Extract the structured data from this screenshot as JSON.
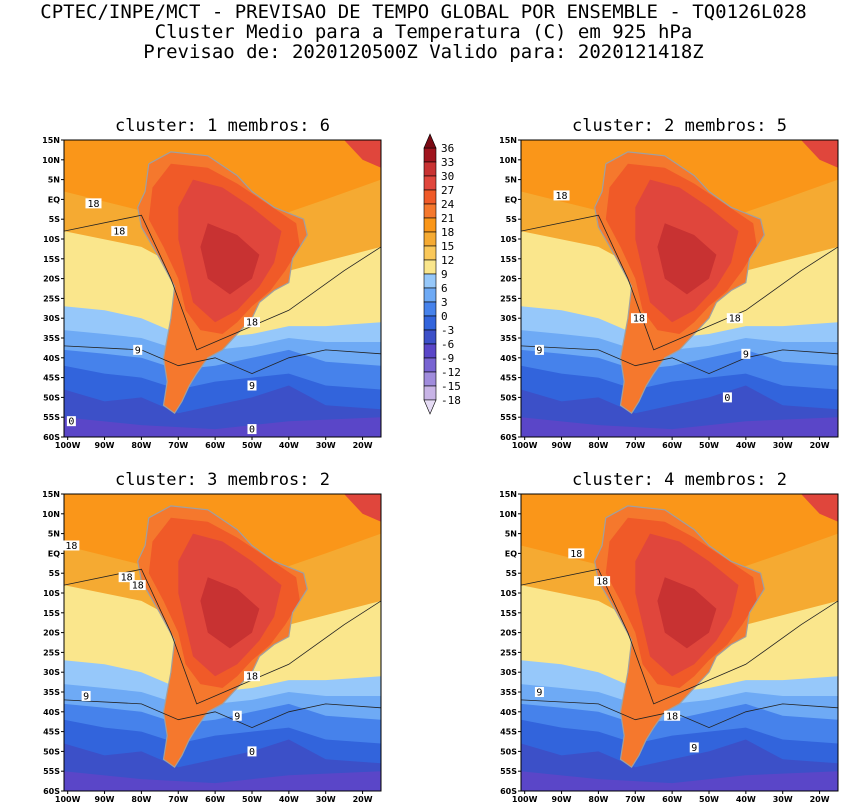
{
  "header": {
    "line1": "CPTEC/INPE/MCT - PREVISAO DE TEMPO GLOBAL POR ENSEMBLE - TQ0126L028",
    "line2": "Cluster Medio para a Temperatura (C) em 925 hPa",
    "line3": "Previsao de: 2020120500Z   Valido para: 2020121418Z"
  },
  "lat_labels": [
    "15N",
    "10N",
    "5N",
    "EQ",
    "5S",
    "10S",
    "15S",
    "20S",
    "25S",
    "30S",
    "35S",
    "40S",
    "45S",
    "50S",
    "55S",
    "60S"
  ],
  "lon_labels": [
    "100W",
    "90W",
    "80W",
    "70W",
    "60W",
    "50W",
    "40W",
    "30W",
    "20W"
  ],
  "colorbar": {
    "labels": [
      "36",
      "33",
      "30",
      "27",
      "24",
      "21",
      "18",
      "15",
      "12",
      "9",
      "6",
      "3",
      "0",
      "-3",
      "-6",
      "-9",
      "-12",
      "-15",
      "-18"
    ],
    "colors": [
      "#a0141e",
      "#c83232",
      "#e0463c",
      "#f05a28",
      "#f5782d",
      "#fa9619",
      "#f5aa32",
      "#fac85a",
      "#fae68c",
      "#96c8fa",
      "#6eaaf5",
      "#4682eb",
      "#3264dc",
      "#3c50c8",
      "#5a46c8",
      "#7864d2",
      "#a08cdc",
      "#c8b4e6",
      "#e6dcf5"
    ]
  },
  "panels": [
    {
      "title": "cluster: 1   membros: 6",
      "contours": [
        {
          "label": "18",
          "lon": -93,
          "lat": -1
        },
        {
          "label": "18",
          "lon": -86,
          "lat": -8
        },
        {
          "label": "18",
          "lon": -50,
          "lat": -31
        },
        {
          "label": "9",
          "lon": -81,
          "lat": -38
        },
        {
          "label": "9",
          "lon": -50,
          "lat": -47
        },
        {
          "label": "0",
          "lon": -99,
          "lat": -56
        },
        {
          "label": "0",
          "lon": -50,
          "lat": -58
        }
      ]
    },
    {
      "title": "cluster: 2   membros: 5",
      "contours": [
        {
          "label": "18",
          "lon": -90,
          "lat": 1
        },
        {
          "label": "18",
          "lon": -69,
          "lat": -30
        },
        {
          "label": "18",
          "lon": -43,
          "lat": -30
        },
        {
          "label": "9",
          "lon": -96,
          "lat": -38
        },
        {
          "label": "9",
          "lon": -40,
          "lat": -39
        },
        {
          "label": "0",
          "lon": -45,
          "lat": -50
        }
      ]
    },
    {
      "title": "cluster: 3   membros: 2",
      "contours": [
        {
          "label": "18",
          "lon": -99,
          "lat": 2
        },
        {
          "label": "18",
          "lon": -84,
          "lat": -6
        },
        {
          "label": "18",
          "lon": -81,
          "lat": -8
        },
        {
          "label": "18",
          "lon": -50,
          "lat": -31
        },
        {
          "label": "9",
          "lon": -95,
          "lat": -36
        },
        {
          "label": "9",
          "lon": -54,
          "lat": -41
        },
        {
          "label": "0",
          "lon": -50,
          "lat": -50
        }
      ]
    },
    {
      "title": "cluster: 4   membros: 2",
      "contours": [
        {
          "label": "18",
          "lon": -86,
          "lat": 0
        },
        {
          "label": "18",
          "lon": -79,
          "lat": -7
        },
        {
          "label": "18",
          "lon": -60,
          "lat": -41
        },
        {
          "label": "9",
          "lon": -96,
          "lat": -35
        },
        {
          "label": "9",
          "lon": -54,
          "lat": -49
        }
      ]
    }
  ]
}
